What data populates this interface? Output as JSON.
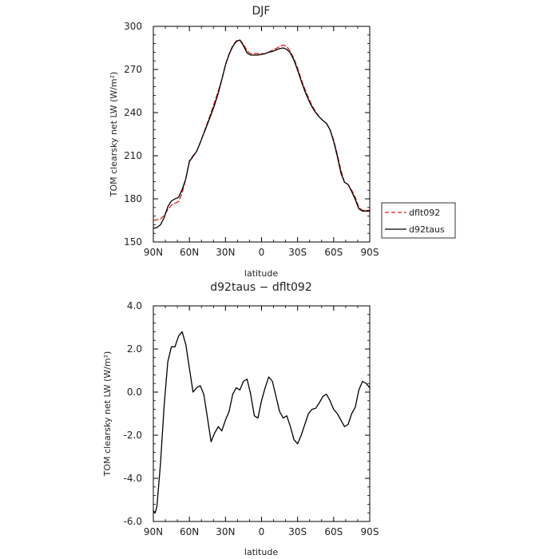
{
  "chart_data": [
    {
      "type": "line",
      "title": "DJF",
      "xlabel": "latitude",
      "ylabel": "TOM clearsky net LW (W/m²)",
      "xlim": [
        90,
        -90
      ],
      "ylim": [
        150,
        300
      ],
      "x_ticks": [
        "90N",
        "60N",
        "30N",
        "0",
        "30S",
        "60S",
        "90S"
      ],
      "y_ticks": [
        "150",
        "180",
        "210",
        "240",
        "270",
        "300"
      ],
      "legend": {
        "position": "right",
        "entries": [
          "dflt092",
          "d92taus"
        ]
      },
      "series": [
        {
          "name": "dflt092",
          "color": "#dd2222",
          "style": "dashed",
          "x": [
            90,
            87,
            84,
            81,
            78,
            75,
            72,
            69,
            66,
            63,
            60,
            57,
            54,
            51,
            48,
            45,
            42,
            39,
            36,
            33,
            30,
            27,
            24,
            21,
            18,
            15,
            12,
            9,
            6,
            3,
            0,
            -3,
            -6,
            -9,
            -12,
            -15,
            -18,
            -21,
            -24,
            -27,
            -30,
            -33,
            -36,
            -39,
            -42,
            -45,
            -48,
            -51,
            -54,
            -57,
            -60,
            -63,
            -66,
            -69,
            -72,
            -75,
            -78,
            -81,
            -84,
            -87,
            -90
          ],
          "y": [
            165,
            165.5,
            166,
            168.5,
            172.5,
            175.5,
            177,
            178,
            184,
            194,
            206.5,
            210,
            213,
            219,
            226,
            233,
            240,
            247.5,
            255,
            263,
            273.5,
            281,
            286.5,
            290,
            290.5,
            287.5,
            283,
            281,
            281,
            281,
            281,
            281,
            282,
            283.5,
            284.5,
            286,
            287,
            286,
            282.5,
            277.5,
            271,
            263,
            256.5,
            250.5,
            245,
            240.5,
            237,
            234.5,
            232.5,
            228,
            221,
            211,
            200,
            191.5,
            190,
            186,
            181,
            174,
            172,
            172,
            172
          ]
        },
        {
          "name": "d92taus",
          "color": "#000000",
          "style": "solid",
          "x": [
            90,
            87,
            84,
            81,
            78,
            75,
            72,
            69,
            66,
            63,
            60,
            57,
            54,
            51,
            48,
            45,
            42,
            39,
            36,
            33,
            30,
            27,
            24,
            21,
            18,
            15,
            12,
            9,
            6,
            3,
            0,
            -3,
            -6,
            -9,
            -12,
            -15,
            -18,
            -21,
            -24,
            -27,
            -30,
            -33,
            -36,
            -39,
            -42,
            -45,
            -48,
            -51,
            -54,
            -57,
            -60,
            -63,
            -66,
            -69,
            -72,
            -75,
            -78,
            -81,
            -84,
            -87,
            -90
          ],
          "y": [
            159.5,
            160,
            162,
            167,
            174.5,
            178.5,
            180,
            181,
            186.5,
            194,
            206,
            209.5,
            213,
            219,
            225.5,
            232,
            238.5,
            245.5,
            253.5,
            263,
            273,
            280.5,
            286,
            289.5,
            290.5,
            286.5,
            281.5,
            280,
            280,
            280,
            280.5,
            281,
            282,
            282.5,
            283.5,
            284.5,
            285,
            284,
            281.5,
            276.5,
            269.5,
            262,
            255,
            249,
            244,
            240,
            237,
            234.5,
            232.5,
            228,
            220,
            209.5,
            198,
            191.5,
            190,
            185,
            179.5,
            173,
            171.5,
            171.5,
            171.5
          ]
        }
      ]
    },
    {
      "type": "line",
      "title": "d92taus − dflt092",
      "xlabel": "latitude",
      "ylabel": "TOM clearsky net LW (W/m²)",
      "xlim": [
        90,
        -90
      ],
      "ylim": [
        -6,
        4
      ],
      "x_ticks": [
        "90N",
        "60N",
        "30N",
        "0",
        "30S",
        "60S",
        "90S"
      ],
      "y_ticks": [
        "-6.0",
        "-4.0",
        "-2.0",
        "0.0",
        "2.0",
        "4.0"
      ],
      "series": [
        {
          "color": "#000000",
          "style": "solid",
          "x": [
            90,
            88.5,
            87,
            84,
            81,
            78,
            75,
            72,
            69,
            66,
            63,
            60,
            57,
            54,
            51,
            48,
            45,
            42,
            39,
            36,
            33,
            30,
            27,
            24,
            21,
            18,
            15,
            12,
            9,
            6,
            3,
            0,
            -3,
            -6,
            -9,
            -12,
            -15,
            -18,
            -21,
            -24,
            -27,
            -30,
            -33,
            -36,
            -39,
            -42,
            -45,
            -48,
            -51,
            -54,
            -57,
            -60,
            -63,
            -66,
            -69,
            -72,
            -75,
            -78,
            -81,
            -84,
            -87,
            -90
          ],
          "y": [
            -5.5,
            -5.6,
            -5.3,
            -3.3,
            -0.6,
            1.4,
            2.1,
            2.1,
            2.6,
            2.8,
            2.2,
            1.1,
            0.0,
            0.2,
            0.3,
            -0.1,
            -1.2,
            -2.3,
            -1.9,
            -1.6,
            -1.8,
            -1.3,
            -0.9,
            -0.1,
            0.2,
            0.1,
            0.5,
            0.6,
            -0.1,
            -1.1,
            -1.2,
            -0.4,
            0.2,
            0.7,
            0.5,
            -0.2,
            -0.9,
            -1.2,
            -1.1,
            -1.6,
            -2.2,
            -2.4,
            -2.0,
            -1.5,
            -1.0,
            -0.8,
            -0.75,
            -0.5,
            -0.2,
            -0.1,
            -0.4,
            -0.8,
            -1.0,
            -1.3,
            -1.6,
            -1.5,
            -1.0,
            -0.7,
            0.1,
            0.5,
            0.4,
            0.2
          ]
        }
      ]
    }
  ]
}
